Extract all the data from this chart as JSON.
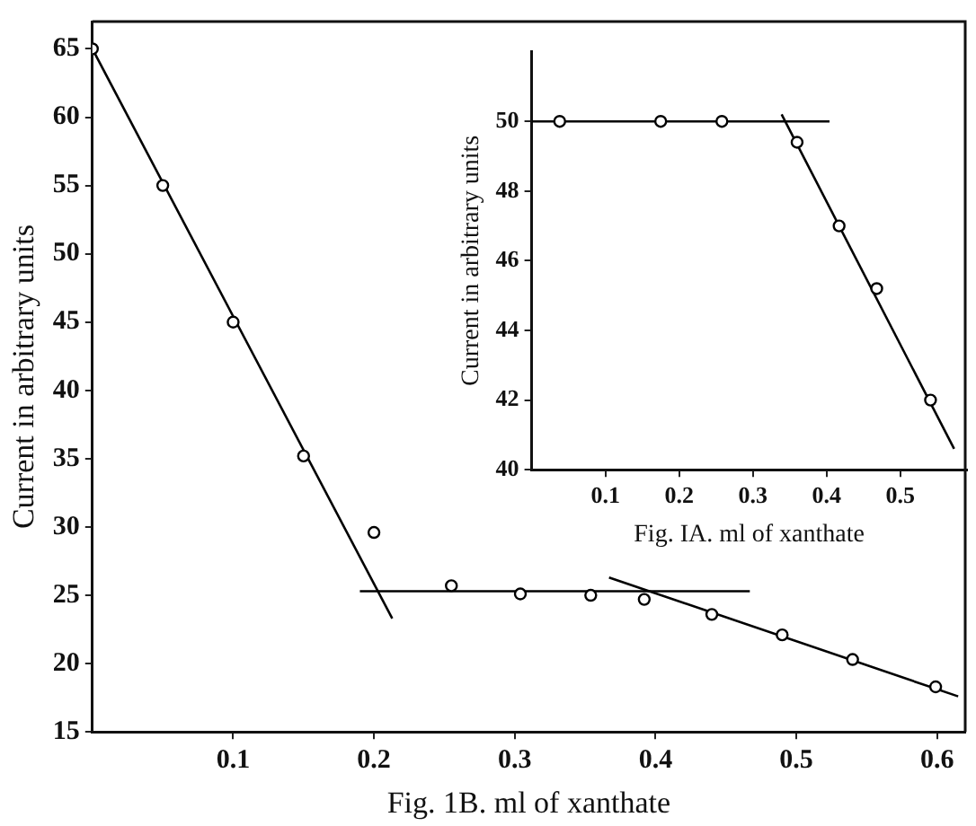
{
  "chart_data": [
    {
      "type": "scatter",
      "xlabel": "Fig. 1B. ml of xanthate",
      "ylabel": "Current in arbitrary units",
      "xlim": [
        0,
        0.62
      ],
      "ylim": [
        15,
        67
      ],
      "xticks": [
        0.1,
        0.2,
        0.3,
        0.4,
        0.5,
        0.6
      ],
      "yticks": [
        15,
        20,
        25,
        30,
        35,
        40,
        45,
        50,
        55,
        60,
        65
      ],
      "grid": false,
      "legend": false,
      "series": [
        {
          "marker": "circle",
          "color": "#000000",
          "x": [
            0,
            0.05,
            0.1,
            0.15,
            0.2,
            0.255,
            0.304,
            0.354,
            0.392,
            0.44,
            0.49,
            0.54,
            0.599
          ],
          "values": [
            65,
            55,
            45,
            35.2,
            29.6,
            25.7,
            25.1,
            25.0,
            24.7,
            23.6,
            22.1,
            20.3,
            18.3
          ]
        },
        {
          "type": "line",
          "marker": "none",
          "color": "#000000",
          "x": [
            0,
            0.213
          ],
          "values": [
            65,
            23.3
          ]
        },
        {
          "type": "line",
          "marker": "none",
          "color": "#000000",
          "x": [
            0.19,
            0.467
          ],
          "values": [
            25.3,
            25.3
          ]
        },
        {
          "type": "line",
          "marker": "none",
          "color": "#000000",
          "x": [
            0.367,
            0.615
          ],
          "values": [
            26.3,
            17.6
          ]
        }
      ]
    },
    {
      "type": "scatter",
      "xlabel": "Fig. IA. ml of xanthate",
      "ylabel": "Current in arbitrary units",
      "xlim": [
        0,
        0.59
      ],
      "ylim": [
        40,
        52
      ],
      "xticks": [
        0.1,
        0.2,
        0.3,
        0.4,
        0.5
      ],
      "yticks": [
        40,
        42,
        44,
        46,
        48,
        50
      ],
      "grid": false,
      "legend": false,
      "series": [
        {
          "marker": "circle",
          "color": "#000000",
          "x": [
            0.038,
            0.175,
            0.258,
            0.36,
            0.417,
            0.468,
            0.541
          ],
          "values": [
            50,
            50,
            50,
            49.4,
            47.0,
            45.2,
            42.0
          ]
        },
        {
          "type": "line",
          "marker": "none",
          "color": "#000000",
          "x": [
            0,
            0.404
          ],
          "values": [
            50,
            50
          ]
        },
        {
          "type": "line",
          "marker": "none",
          "color": "#000000",
          "x": [
            0.339,
            0.573
          ],
          "values": [
            50.2,
            40.6
          ]
        }
      ]
    }
  ]
}
